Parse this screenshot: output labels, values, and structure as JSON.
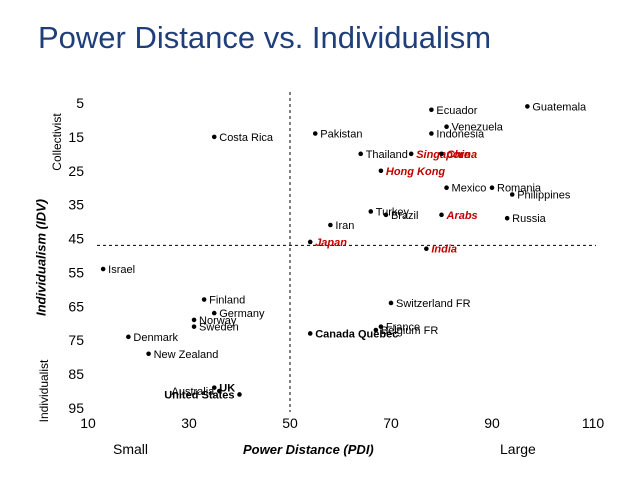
{
  "chart_data": {
    "type": "scatter",
    "title": "Power Distance vs. Individualism",
    "xlabel": "Power Distance (PDI)",
    "ylabel": "Individualism (IDV)",
    "x_low_label": "Small",
    "x_high_label": "Large",
    "y_top_label": "Collectivist",
    "y_bottom_label": "Individualist",
    "xlim": [
      10,
      110
    ],
    "ylim": [
      95,
      5
    ],
    "x_ticks": [
      "10",
      "30",
      "50",
      "70",
      "90",
      "110"
    ],
    "y_ticks": [
      "5",
      "15",
      "25",
      "35",
      "45",
      "55",
      "65",
      "75",
      "85",
      "95"
    ],
    "divider_x": 50,
    "divider_y": 47,
    "points": [
      {
        "name": "Guatemala",
        "x": 97,
        "y": 6,
        "style": "normal",
        "side": "right"
      },
      {
        "name": "Ecuador",
        "x": 78,
        "y": 7,
        "style": "normal",
        "side": "right"
      },
      {
        "name": "Venezuela",
        "x": 81,
        "y": 12,
        "style": "normal",
        "side": "right"
      },
      {
        "name": "Indonesia",
        "x": 78,
        "y": 14,
        "style": "normal",
        "side": "right"
      },
      {
        "name": "Costa Rica",
        "x": 35,
        "y": 15,
        "style": "normal",
        "side": "right"
      },
      {
        "name": "Pakistan",
        "x": 55,
        "y": 14,
        "style": "normal",
        "side": "right"
      },
      {
        "name": "Thailand",
        "x": 64,
        "y": 20,
        "style": "normal",
        "side": "right"
      },
      {
        "name": "Singapore",
        "x": 74,
        "y": 20,
        "style": "red",
        "side": "right"
      },
      {
        "name": "China",
        "x": 80,
        "y": 20,
        "style": "red",
        "side": "right"
      },
      {
        "name": "Hong Kong",
        "x": 68,
        "y": 25,
        "style": "red",
        "side": "right"
      },
      {
        "name": "Romania",
        "x": 90,
        "y": 30,
        "style": "normal",
        "side": "right"
      },
      {
        "name": "Mexico",
        "x": 81,
        "y": 30,
        "style": "normal",
        "side": "right"
      },
      {
        "name": "Philippines",
        "x": 94,
        "y": 32,
        "style": "normal",
        "side": "right"
      },
      {
        "name": "Turkey",
        "x": 66,
        "y": 37,
        "style": "normal",
        "side": "right"
      },
      {
        "name": "Arabs",
        "x": 80,
        "y": 38,
        "style": "red",
        "side": "right"
      },
      {
        "name": "Iran",
        "x": 58,
        "y": 41,
        "style": "normal",
        "side": "right"
      },
      {
        "name": "Russia",
        "x": 93,
        "y": 39,
        "style": "normal",
        "side": "right"
      },
      {
        "name": "Brazil",
        "x": 69,
        "y": 38,
        "style": "normal",
        "side": "right"
      },
      {
        "name": "Japan",
        "x": 54,
        "y": 46,
        "style": "red",
        "side": "right"
      },
      {
        "name": "India",
        "x": 77,
        "y": 48,
        "style": "red",
        "side": "right"
      },
      {
        "name": "Israel",
        "x": 13,
        "y": 54,
        "style": "normal",
        "side": "right"
      },
      {
        "name": "Finland",
        "x": 33,
        "y": 63,
        "style": "normal",
        "side": "right"
      },
      {
        "name": "Germany",
        "x": 35,
        "y": 67,
        "style": "normal",
        "side": "right"
      },
      {
        "name": "Switzerland FR",
        "x": 70,
        "y": 64,
        "style": "normal",
        "side": "right"
      },
      {
        "name": "Norway",
        "x": 31,
        "y": 69,
        "style": "normal",
        "side": "right"
      },
      {
        "name": "France",
        "x": 68,
        "y": 71,
        "style": "normal",
        "side": "right"
      },
      {
        "name": "Sweden",
        "x": 31,
        "y": 71,
        "style": "normal",
        "side": "right"
      },
      {
        "name": "Belgium FR",
        "x": 67,
        "y": 72,
        "style": "normal",
        "side": "right"
      },
      {
        "name": "Denmark",
        "x": 18,
        "y": 74,
        "style": "normal",
        "side": "right"
      },
      {
        "name": "Canada Quebec",
        "x": 54,
        "y": 73,
        "style": "bold",
        "side": "right"
      },
      {
        "name": "New Zealand",
        "x": 22,
        "y": 79,
        "style": "normal",
        "side": "right"
      },
      {
        "name": "UK",
        "x": 35,
        "y": 89,
        "style": "bold",
        "side": "right"
      },
      {
        "name": "Australia",
        "x": 36,
        "y": 90,
        "style": "normal",
        "side": "left"
      },
      {
        "name": "United States",
        "x": 40,
        "y": 91,
        "style": "bold",
        "side": "left"
      }
    ]
  }
}
